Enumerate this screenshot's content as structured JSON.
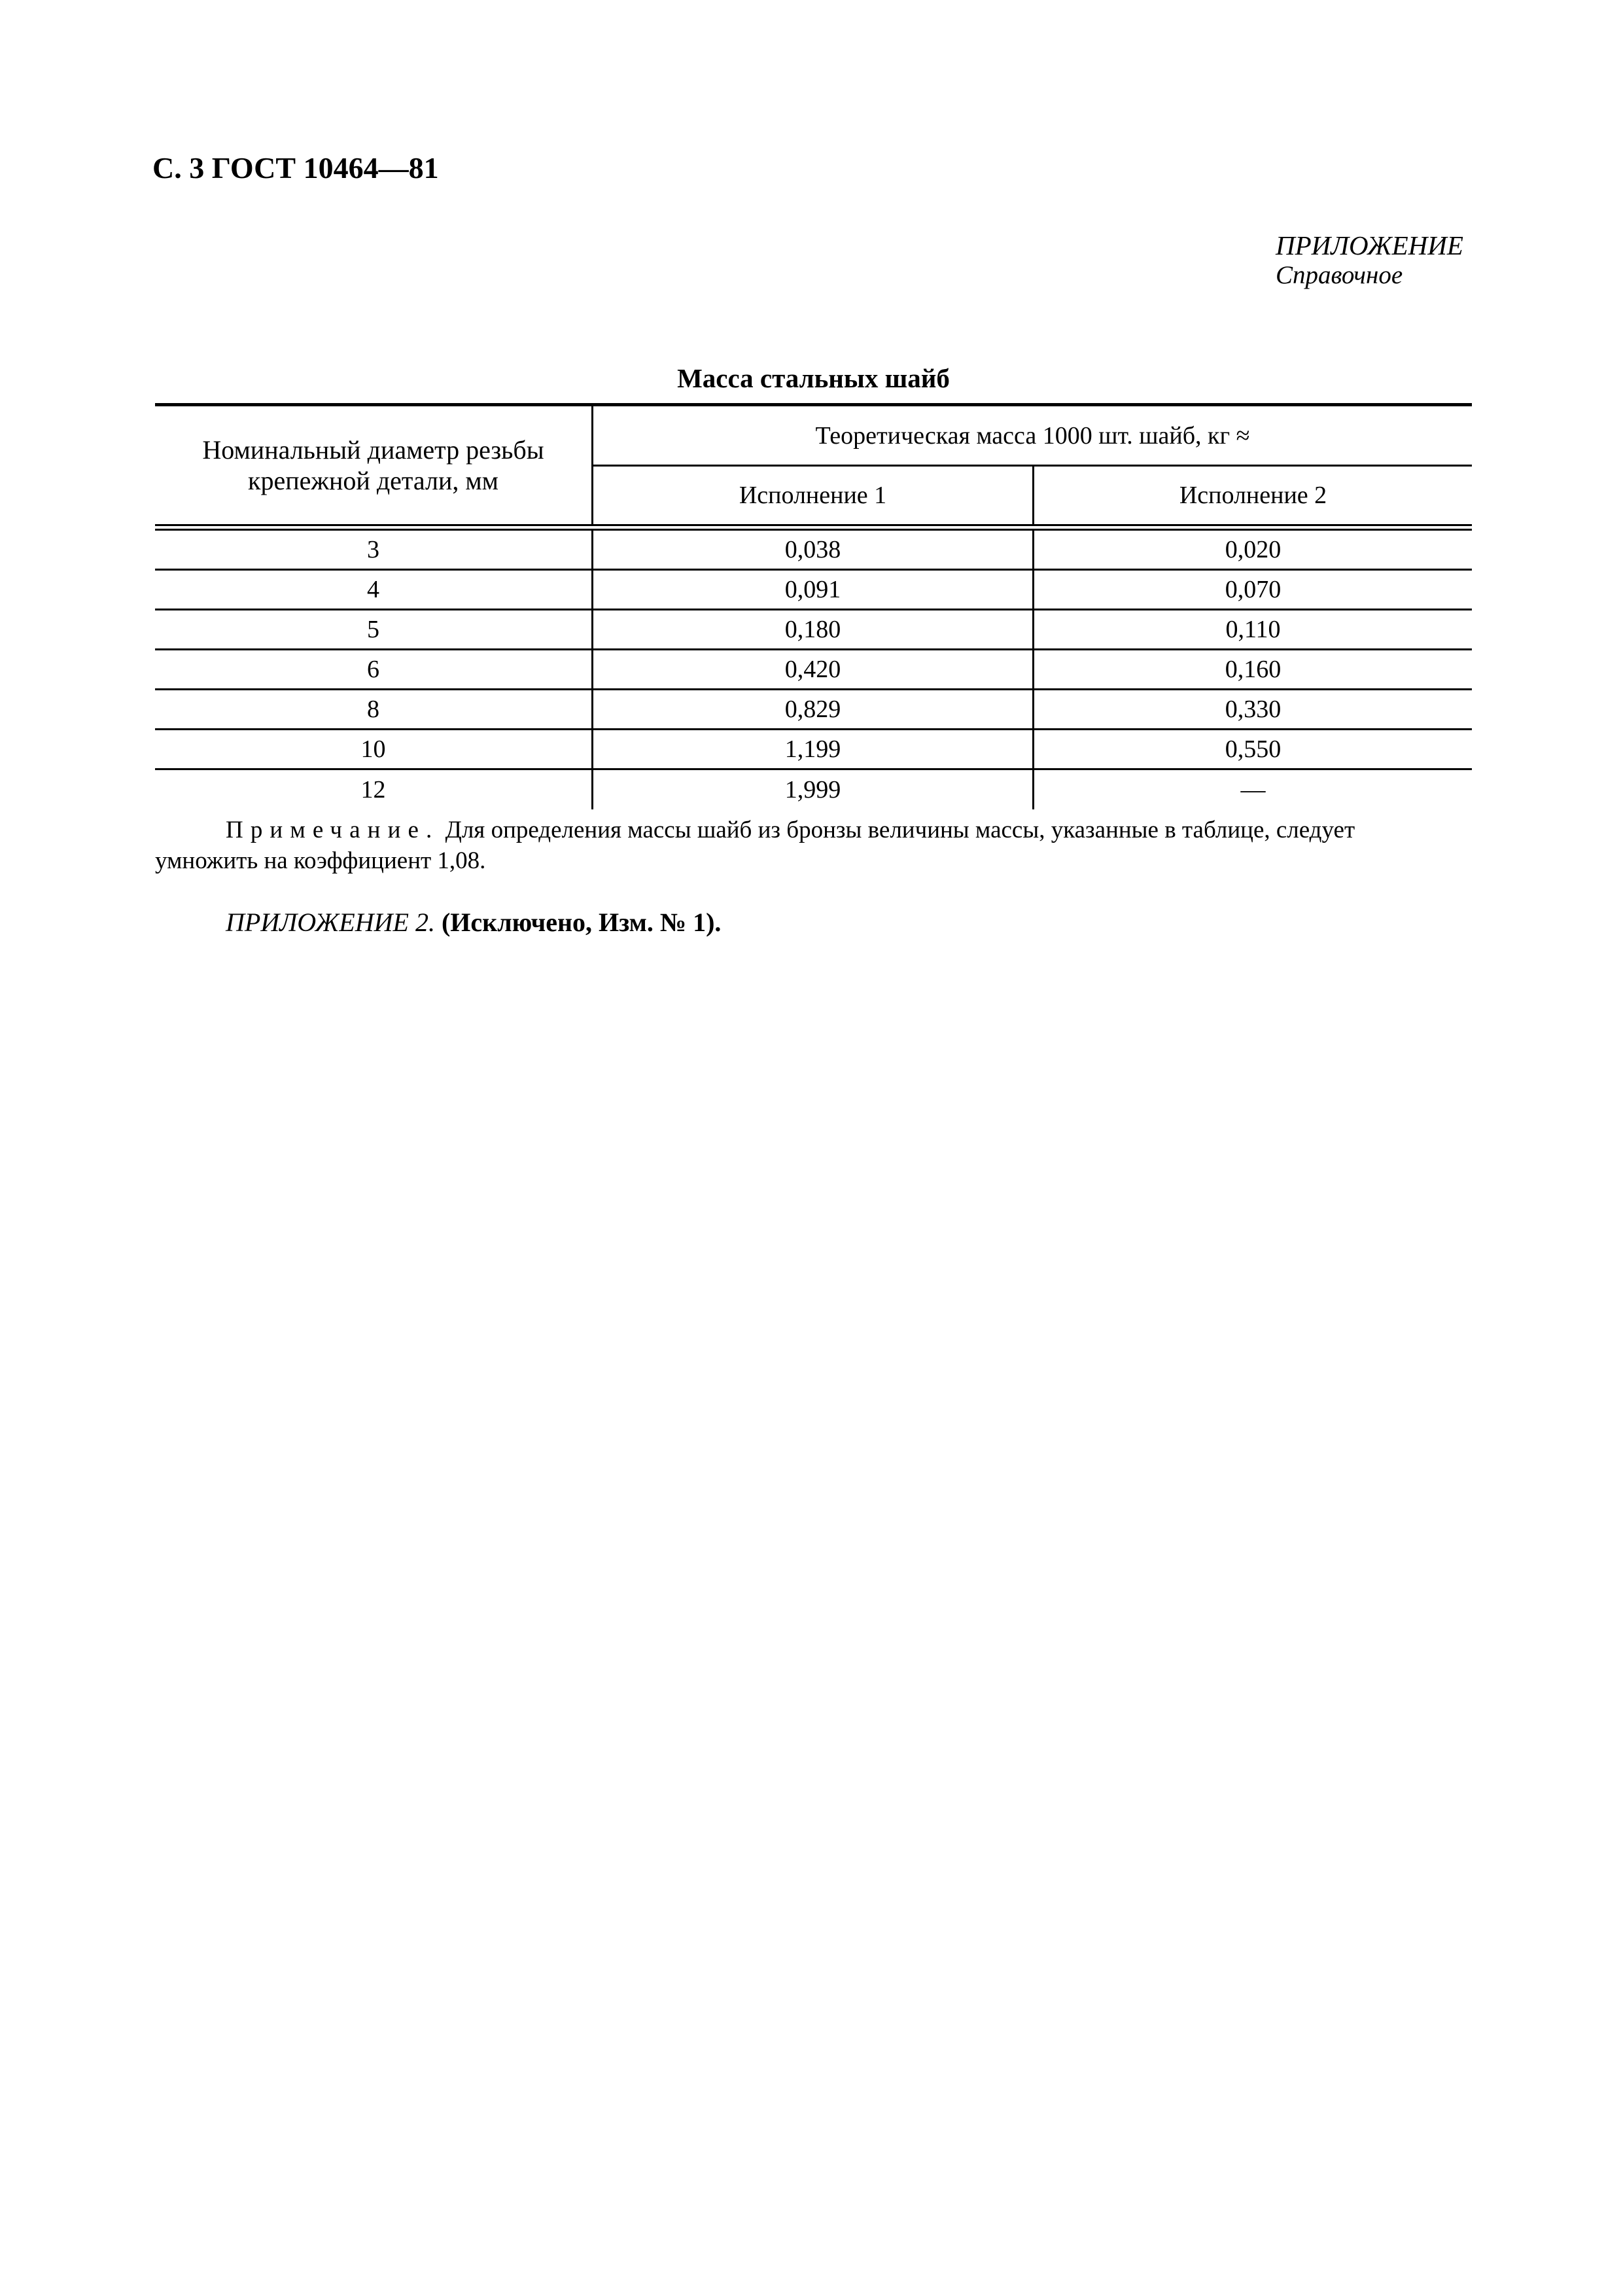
{
  "page": {
    "header": "С. 3 ГОСТ 10464—81"
  },
  "appendix": {
    "label": "ПРИЛОЖЕНИЕ",
    "type": "Справочное"
  },
  "table": {
    "title": "Масса стальных шайб",
    "col_diameter_header": "Номинальный диаметр резьбы\nкрепежной детали, мм",
    "span_header": "Теоретическая масса 1000 шт. шайб, кг ≈",
    "sub_headers": [
      "Исполнение 1",
      "Исполнение 2"
    ],
    "rows": [
      {
        "diameter": "3",
        "mass_version_1": "0,038",
        "mass_version_2": "0,020"
      },
      {
        "diameter": "4",
        "mass_version_1": "0,091",
        "mass_version_2": "0,070"
      },
      {
        "diameter": "5",
        "mass_version_1": "0,180",
        "mass_version_2": "0,110"
      },
      {
        "diameter": "6",
        "mass_version_1": "0,420",
        "mass_version_2": "0,160"
      },
      {
        "diameter": "8",
        "mass_version_1": "0,829",
        "mass_version_2": "0,330"
      },
      {
        "diameter": "10",
        "mass_version_1": "1,199",
        "mass_version_2": "0,550"
      },
      {
        "diameter": "12",
        "mass_version_1": "1,999",
        "mass_version_2": "—"
      }
    ]
  },
  "note": {
    "label": "Примечание.",
    "text": "Для определения массы шайб из бронзы величины массы, указанные в таблице, следует\nумножить на коэффициент 1,08."
  },
  "appendix2": {
    "label": "ПРИЛОЖЕНИЕ 2.",
    "status": "(Исключено, Изм. № 1)."
  },
  "colors": {
    "ink": "#000000",
    "paper": "#ffffff"
  }
}
